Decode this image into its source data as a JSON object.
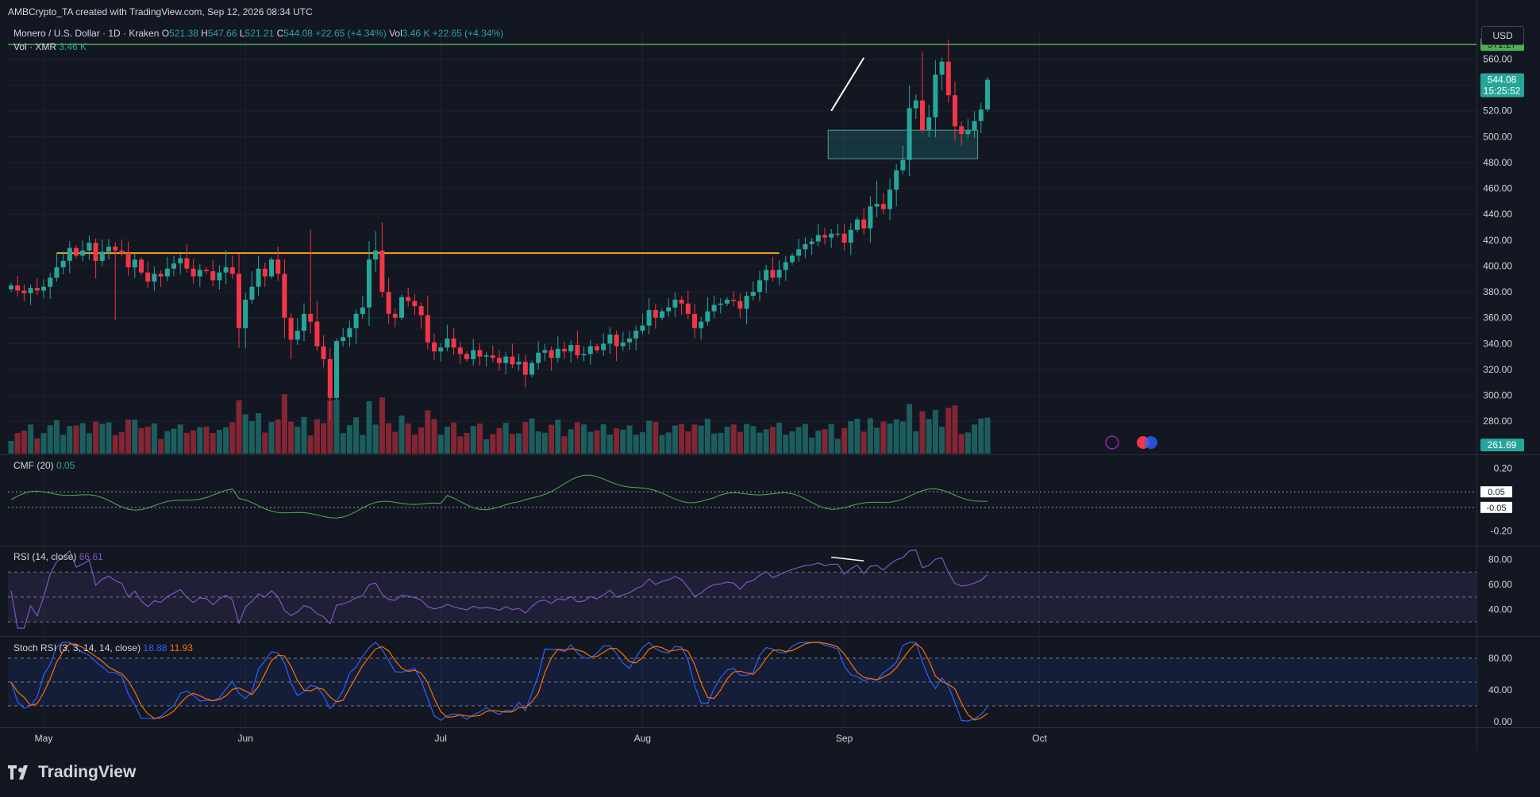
{
  "header": {
    "credit": "AMBCrypto_TA created with TradingView.com, Sep 12, 2026 08:34 UTC",
    "symbol": "Monero / U.S. Dollar · 1D · Kraken",
    "o_label": "O",
    "o_value": "521.38",
    "h_label": "H",
    "h_value": "547.66",
    "l_label": "L",
    "l_value": "521.21",
    "c_label": "C",
    "c_value": "544.08",
    "change": "+22.65 (+4.34%)",
    "vol_label": "Vol",
    "vol_value": "3.46 K",
    "vol_change": "+22.65 (+4.34%)",
    "vol_series_label": "Vol · XMR",
    "vol_series_value": "3.46 K",
    "currency_button": "USD"
  },
  "logo": {
    "text": "TradingView",
    "icon": "tradingview-logo-icon"
  },
  "colors": {
    "up": "#26a69a",
    "down": "#f23645",
    "background": "#131722",
    "grid": "#1e222d",
    "resistance": "#f7a21b",
    "target_line": "#4caf50",
    "cmf": "#4caf50",
    "rsi": "#7e57c2",
    "stoch_k": "#2962ff",
    "stoch_d": "#ff6d00"
  },
  "chart_data": [
    {
      "type": "candlestick",
      "title": "Monero / U.S. Dollar · 1D · Kraken",
      "ylim": [
        255,
        575
      ],
      "price_ticks": [
        "560.00",
        "540.00",
        "520.00",
        "500.00",
        "480.00",
        "460.00",
        "440.00",
        "420.00",
        "400.00",
        "380.00",
        "360.00",
        "340.00",
        "320.00",
        "300.00",
        "280.00"
      ],
      "x_labels": [
        "May",
        "Jun",
        "Jul",
        "Aug",
        "Sep",
        "Oct"
      ],
      "price_badges": {
        "last_price": "544.08",
        "countdown": "15:25:52",
        "high_line": "571.27",
        "volume_mark": "261.69"
      },
      "levels": {
        "resistance": 410,
        "target": 571.27
      },
      "demand_zone": {
        "from": "2026-09-01",
        "to": "2026-09-23",
        "low": 483,
        "high": 505
      },
      "trendline": {
        "from": [
          "2026-08-31",
          522
        ],
        "to": [
          "2026-09-05",
          558
        ]
      },
      "closes": [
        385,
        381,
        379,
        383,
        381,
        384,
        391,
        399,
        404,
        414,
        408,
        412,
        418,
        404,
        411,
        415,
        412,
        410,
        399,
        405,
        395,
        388,
        394,
        392,
        398,
        402,
        406,
        398,
        392,
        397,
        396,
        389,
        395,
        399,
        394,
        352,
        374,
        384,
        398,
        392,
        405,
        394,
        360,
        343,
        350,
        363,
        357,
        338,
        328,
        298,
        342,
        345,
        352,
        363,
        368,
        405,
        412,
        380,
        363,
        360,
        376,
        373,
        369,
        362,
        341,
        334,
        337,
        344,
        337,
        332,
        328,
        335,
        330,
        331,
        329,
        325,
        330,
        324,
        326,
        316,
        325,
        333,
        335,
        329,
        336,
        334,
        339,
        331,
        332,
        338,
        335,
        340,
        347,
        338,
        341,
        344,
        350,
        354,
        366,
        360,
        365,
        368,
        374,
        371,
        363,
        352,
        357,
        365,
        370,
        371,
        374,
        373,
        367,
        377,
        380,
        389,
        397,
        391,
        397,
        403,
        408,
        413,
        417,
        419,
        424,
        422,
        425,
        425,
        418,
        428,
        436,
        429,
        446,
        448,
        444,
        459,
        474,
        482,
        522,
        528,
        505,
        515,
        548,
        558,
        532,
        508,
        502,
        505,
        512,
        521,
        544
      ],
      "volume_note": "volume bars shown with same colour as candle direction"
    },
    {
      "type": "line",
      "title": "CMF (20)",
      "value": "0.05",
      "ticks": [
        "0.20",
        "-0.20"
      ],
      "badges": [
        "0.05",
        "-0.05"
      ],
      "ylim": [
        -0.28,
        0.28
      ]
    },
    {
      "type": "line",
      "title": "RSI (14, close)",
      "value": "66.61",
      "ticks": [
        "80.00",
        "60.00",
        "40.00"
      ],
      "band": [
        30,
        70
      ],
      "divergence": {
        "from": "2026-08-31",
        "to": "2026-09-06"
      },
      "ylim": [
        20,
        90
      ]
    },
    {
      "type": "line",
      "title": "Stoch RSI (3, 3, 14, 14, close)",
      "k_value": "18.88",
      "d_value": "11.93",
      "ticks": [
        "80.00",
        "40.00",
        "0.00"
      ],
      "band": [
        20,
        80
      ],
      "ylim": [
        -5,
        105
      ]
    }
  ]
}
